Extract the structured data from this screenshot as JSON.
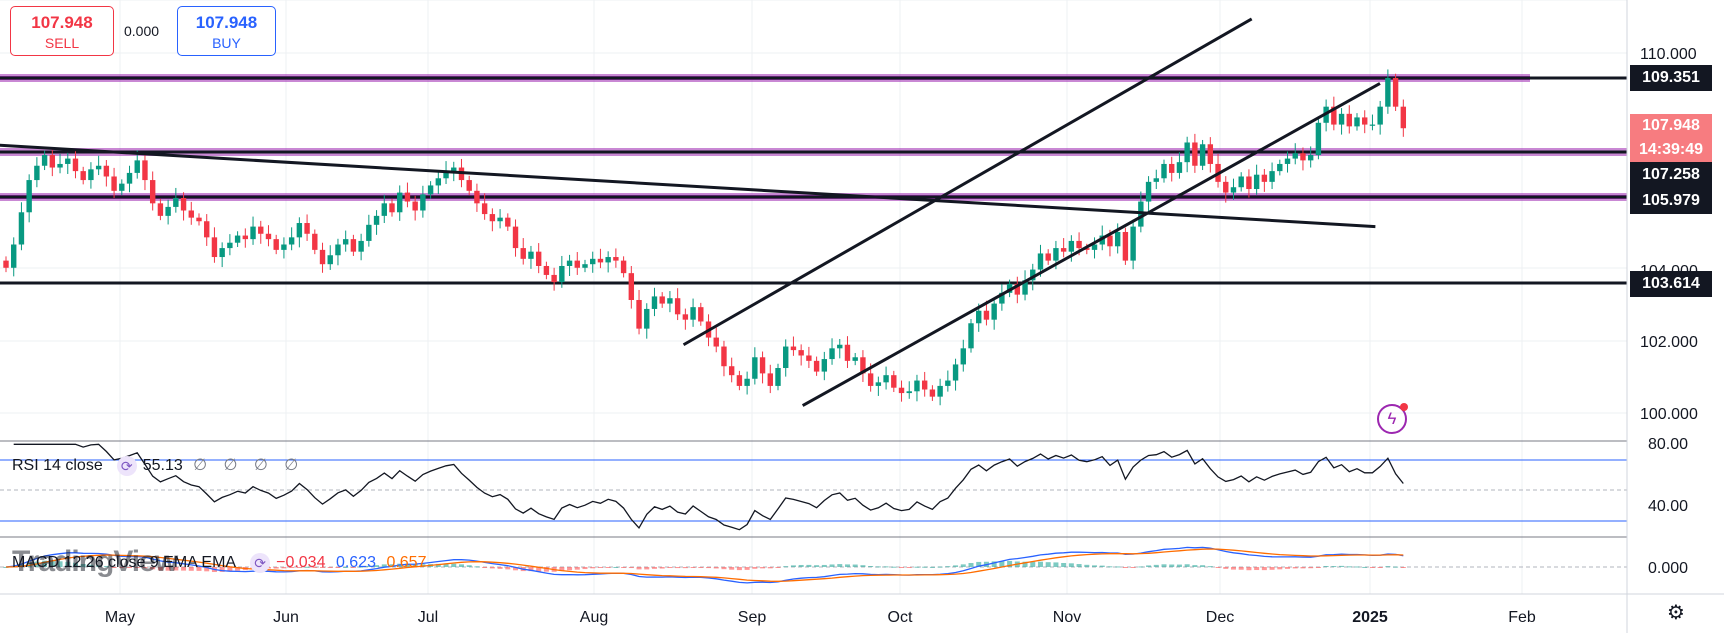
{
  "trade": {
    "sell_price": "107.948",
    "sell_label": "SELL",
    "spread": "0.000",
    "buy_price": "107.948",
    "buy_label": "BUY"
  },
  "price_tags": {
    "res1": "109.351",
    "current": "107.948",
    "countdown": "14:39:49",
    "res2": "107.258",
    "res3": "105.979",
    "sup1": "103.614"
  },
  "rsi": {
    "label": "RSI 14 close",
    "value": "55.13",
    "zeros": "∅ ∅ ∅ ∅"
  },
  "macd": {
    "label": "MACD 12 26 close 9 EMA EMA",
    "hist": "−0.034",
    "macd": "0.623",
    "signal": "0.657"
  },
  "watermark": "TradingView",
  "colors": {
    "up": "#089981",
    "down": "#f23645",
    "macd_line": "#2962ff",
    "signal_line": "#ff6d00",
    "level_band": "#9c27b0"
  },
  "icons": {
    "settings": "gear-icon",
    "indicator": "refresh-icon",
    "alert": "lightning-icon"
  },
  "chart_data": {
    "type": "candlestick",
    "title": "",
    "timeframe": "daily",
    "x_ticks": [
      "May",
      "Jun",
      "Jul",
      "Aug",
      "Sep",
      "Oct",
      "Nov",
      "Dec",
      "2025",
      "Feb"
    ],
    "y_ticks": [
      "110.000",
      "104.000",
      "102.000",
      "100.000"
    ],
    "ylim": [
      99.5,
      111.0
    ],
    "horizontal_levels": [
      109.351,
      107.258,
      105.979,
      103.614
    ],
    "trendlines": [
      {
        "name": "descending",
        "from": [
          "2024-04-01",
          107.5
        ],
        "to": [
          "2025-01-30",
          105.2
        ]
      },
      {
        "name": "channel-upper",
        "from": [
          "2024-09-01",
          101.9
        ],
        "to": [
          "2025-01-03",
          111.0
        ]
      },
      {
        "name": "channel-lower",
        "from": [
          "2024-09-27",
          100.2
        ],
        "to": [
          "2025-01-31",
          109.2
        ]
      }
    ],
    "closes": [
      104.05,
      104.7,
      105.6,
      106.5,
      106.9,
      107.2,
      106.85,
      106.95,
      107.1,
      106.75,
      106.5,
      106.8,
      106.9,
      106.6,
      106.2,
      106.4,
      106.7,
      107.05,
      106.5,
      105.85,
      105.5,
      105.75,
      106.0,
      105.65,
      105.45,
      105.35,
      104.9,
      104.35,
      104.6,
      104.75,
      104.95,
      104.85,
      105.2,
      105.0,
      104.85,
      104.55,
      104.7,
      104.9,
      105.3,
      105.0,
      104.55,
      104.15,
      104.4,
      104.7,
      104.85,
      104.5,
      104.8,
      105.25,
      105.5,
      105.85,
      105.6,
      106.15,
      105.9,
      105.65,
      106.1,
      106.35,
      106.55,
      106.75,
      106.85,
      106.5,
      106.2,
      105.85,
      105.55,
      105.35,
      105.45,
      105.2,
      104.6,
      104.3,
      104.5,
      104.1,
      103.85,
      103.65,
      104.1,
      104.25,
      104.05,
      104.15,
      104.3,
      104.2,
      104.35,
      104.25,
      103.9,
      103.15,
      102.35,
      102.9,
      103.25,
      103.05,
      103.2,
      102.75,
      102.6,
      102.95,
      102.55,
      102.1,
      101.85,
      101.3,
      101.05,
      100.75,
      100.95,
      101.55,
      101.1,
      100.75,
      101.25,
      101.85,
      101.75,
      101.6,
      101.45,
      101.15,
      101.5,
      101.8,
      101.9,
      101.45,
      101.55,
      101.1,
      100.75,
      100.85,
      101.05,
      100.7,
      100.55,
      100.6,
      100.9,
      100.65,
      100.45,
      100.75,
      100.9,
      101.35,
      101.8,
      102.5,
      102.85,
      102.6,
      103.05,
      103.35,
      103.6,
      103.3,
      103.7,
      104.0,
      104.45,
      104.25,
      104.6,
      104.5,
      104.8,
      104.6,
      104.55,
      104.7,
      104.95,
      104.65,
      105.05,
      104.25,
      105.2,
      105.9,
      106.45,
      106.55,
      106.95,
      106.7,
      107.0,
      107.55,
      106.9,
      107.5,
      106.95,
      106.45,
      106.15,
      106.3,
      106.6,
      106.25,
      106.65,
      106.45,
      106.75,
      106.95,
      107.1,
      107.25,
      107.05,
      107.2,
      108.1,
      108.55,
      108.05,
      108.35,
      108.0,
      108.25,
      108.05,
      108.05,
      108.55,
      109.35,
      108.55,
      107.948
    ]
  }
}
